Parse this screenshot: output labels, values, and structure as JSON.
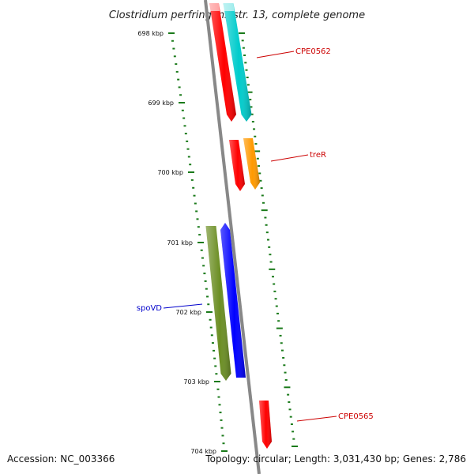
{
  "title": "Clostridium perfringens str. 13, complete genome",
  "footer": {
    "accession": "Accession: NC_003366",
    "topology": "Topology: circular; Length: 3,031,430 bp; Genes: 2,786"
  },
  "colors": {
    "backbone": "#888888",
    "tick": "#1a7a1a",
    "label_red": "#cc0000",
    "label_blue": "#0000cc"
  },
  "ticks": [
    {
      "label": "698 kbp"
    },
    {
      "label": "699 kbp"
    },
    {
      "label": "700 kbp"
    },
    {
      "label": "701 kbp"
    },
    {
      "label": "702 kbp"
    },
    {
      "label": "703 kbp"
    },
    {
      "label": "704 kbp"
    }
  ],
  "genes": [
    {
      "label": "CPE0562",
      "color": "#00cccc",
      "strand": "forward"
    },
    {
      "label": "",
      "color": "#ff0000",
      "strand": "forward"
    },
    {
      "label": "treR",
      "color": "#ff9900",
      "strand": "forward"
    },
    {
      "label": "",
      "color": "#ff0000",
      "strand": "forward"
    },
    {
      "label": "spoVD",
      "color": "#6b8e23",
      "strand": "forward"
    },
    {
      "label": "",
      "color": "#0000ff",
      "strand": "reverse"
    },
    {
      "label": "CPE0565",
      "color": "#ff0000",
      "strand": "forward"
    }
  ]
}
